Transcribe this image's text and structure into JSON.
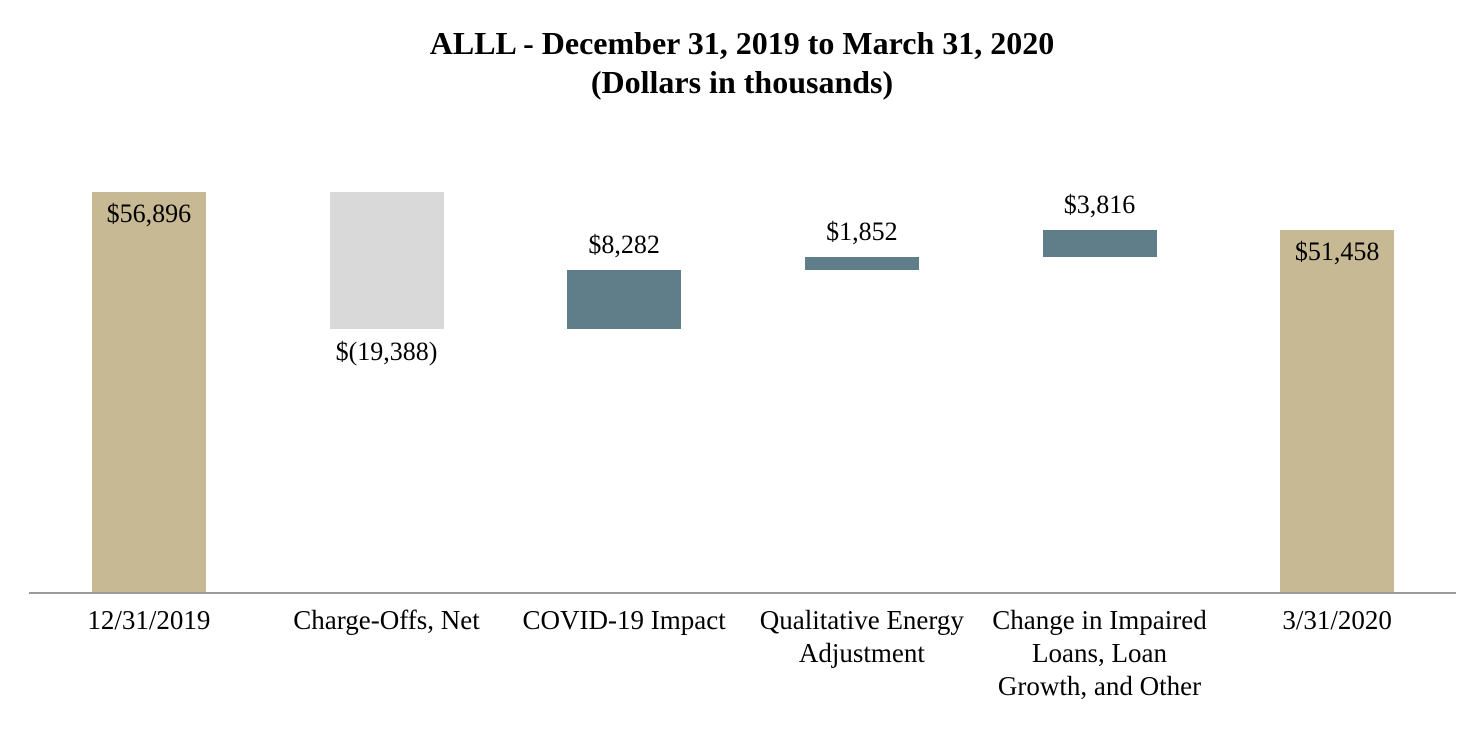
{
  "chart_data": {
    "type": "bar",
    "subtype": "waterfall",
    "title": "ALLL - December 31, 2019 to March 31, 2020",
    "subtitle": "(Dollars in thousands)",
    "ylabel": "",
    "xlabel": "",
    "ylim": [
      0,
      56896
    ],
    "grid": false,
    "legend": false,
    "colors": {
      "total": "#C8B995",
      "decrease": "#D9D9D9",
      "increase": "#5F7E8A",
      "axis_line": "#9B9B9B",
      "text": "#000000"
    },
    "steps": [
      {
        "category": "12/31/2019",
        "category_lines": [
          "12/31/2019"
        ],
        "value": 56896,
        "value_label": "$56,896",
        "kind": "total",
        "value_label_position": "inside-top"
      },
      {
        "category": "Charge-Offs, Net",
        "category_lines": [
          "Charge-Offs, Net"
        ],
        "value": -19388,
        "value_label": "$(19,388)",
        "kind": "decrease",
        "value_label_position": "below"
      },
      {
        "category": "COVID-19 Impact",
        "category_lines": [
          "COVID-19 Impact"
        ],
        "value": 8282,
        "value_label": "$8,282",
        "kind": "increase",
        "value_label_position": "above"
      },
      {
        "category": "Qualitative Energy Adjustment",
        "category_lines": [
          "Qualitative Energy",
          "Adjustment"
        ],
        "value": 1852,
        "value_label": "$1,852",
        "kind": "increase",
        "value_label_position": "above"
      },
      {
        "category": "Change in Impaired Loans, Loan Growth, and Other",
        "category_lines": [
          "Change in Impaired",
          "Loans, Loan",
          "Growth, and Other"
        ],
        "value": 3816,
        "value_label": "$3,816",
        "kind": "increase",
        "value_label_position": "above"
      },
      {
        "category": "3/31/2020",
        "category_lines": [
          "3/31/2020"
        ],
        "value": 51458,
        "value_label": "$51,458",
        "kind": "total",
        "value_label_position": "inside-top"
      }
    ]
  }
}
